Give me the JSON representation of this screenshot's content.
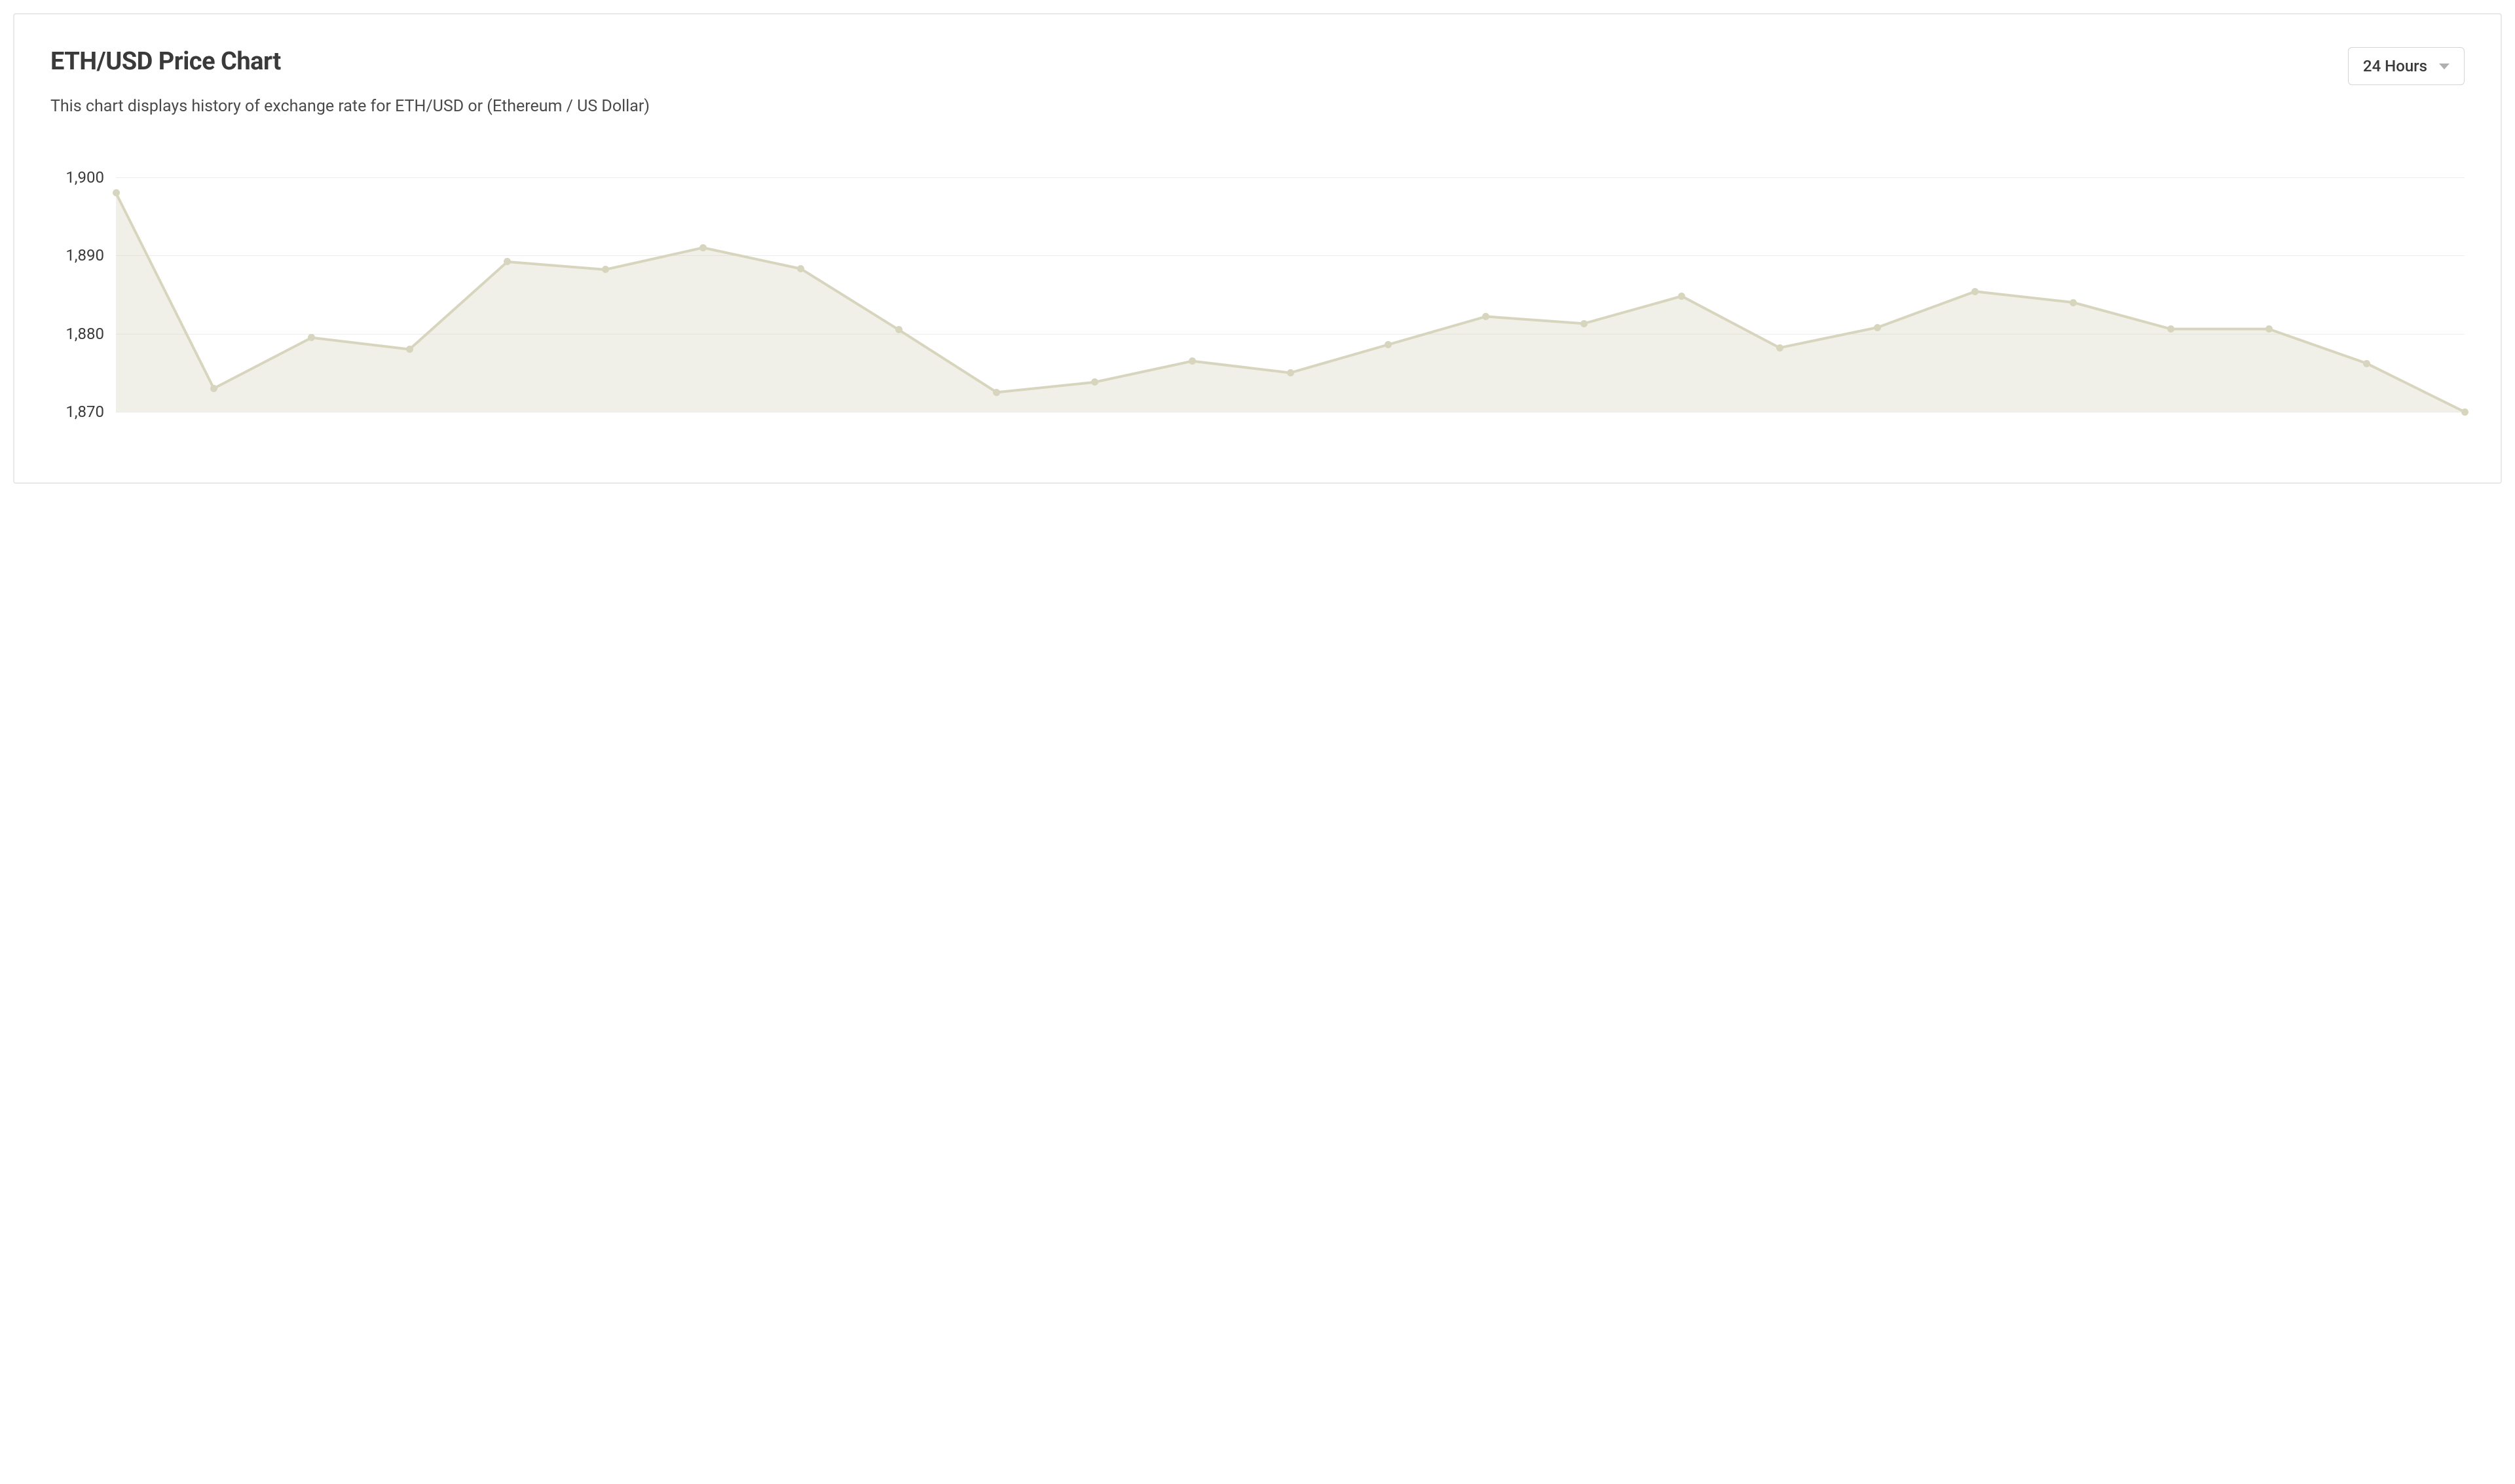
{
  "header": {
    "title": "ETH/USD Price Chart",
    "subtitle": "This chart displays history of exchange rate for ETH/USD or (Ethereum / US Dollar)",
    "dropdown_label": "24 Hours"
  },
  "chart": {
    "type": "area",
    "ylim": [
      1866,
      1902
    ],
    "ytick_step": 10,
    "ytick_labels": [
      "1,870",
      "1,880",
      "1,890",
      "1,900"
    ],
    "ytick_values": [
      1870,
      1880,
      1890,
      1900
    ],
    "baseline_value": 1870,
    "show_bottom_gridline": false,
    "values": [
      1898.0,
      1873.0,
      1879.5,
      1878.0,
      1889.2,
      1888.2,
      1891.0,
      1888.3,
      1880.5,
      1872.5,
      1873.8,
      1876.5,
      1875.0,
      1878.6,
      1882.2,
      1881.3,
      1884.8,
      1878.2,
      1880.8,
      1885.4,
      1884.0,
      1880.6,
      1880.6,
      1876.2,
      1870.0
    ],
    "line_color": "#d8d5be",
    "line_width": 4,
    "fill_color": "rgba(216, 213, 190, 0.35)",
    "marker_color": "#d8d5be",
    "marker_radius": 5.5,
    "background_color": "#ffffff",
    "grid_color": "#ececec",
    "axis_label_color": "#3a3a3a",
    "axis_label_fontsize": 24
  }
}
